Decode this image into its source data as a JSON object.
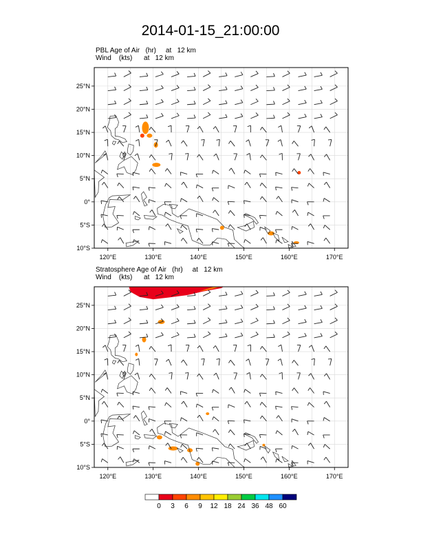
{
  "title": "2014-01-15_21:00:00",
  "panels": [
    {
      "id": "pbl",
      "line1": "PBL Age of Air   (hr)     at   12 km",
      "line2": "Wind    (kts)      at   12 km",
      "lon_labels": [
        "120°E",
        "130°E",
        "140°E",
        "150°E",
        "160°E",
        "170°E"
      ],
      "lat_labels": [
        "25°N",
        "20°N",
        "15°N",
        "10°N",
        "5°N",
        "0°",
        "5°S",
        "10°S"
      ]
    },
    {
      "id": "strat",
      "line1": "Stratosphere Age of Air   (hr)     at   12 km",
      "line2": "Wind    (kts)      at   12 km",
      "lon_labels": [
        "120°E",
        "130°E",
        "140°E",
        "150°E",
        "160°E",
        "170°E"
      ],
      "lat_labels": [
        "25°N",
        "20°N",
        "15°N",
        "10°N",
        "5°N",
        "0°",
        "5°S",
        "10°S"
      ]
    }
  ],
  "map_extent": {
    "lon_range": [
      117,
      173
    ],
    "lat_range": [
      -10,
      29
    ]
  },
  "colorbar": {
    "labels": [
      "0",
      "3",
      "6",
      "9",
      "12",
      "18",
      "24",
      "36",
      "48",
      "60"
    ],
    "colors": [
      "#ffffff",
      "#e8001a",
      "#ff4400",
      "#ff8c00",
      "#ffc400",
      "#ffee00",
      "#9acd32",
      "#00cc44",
      "#00e5ee",
      "#1e90ff",
      "#00007a"
    ]
  }
}
